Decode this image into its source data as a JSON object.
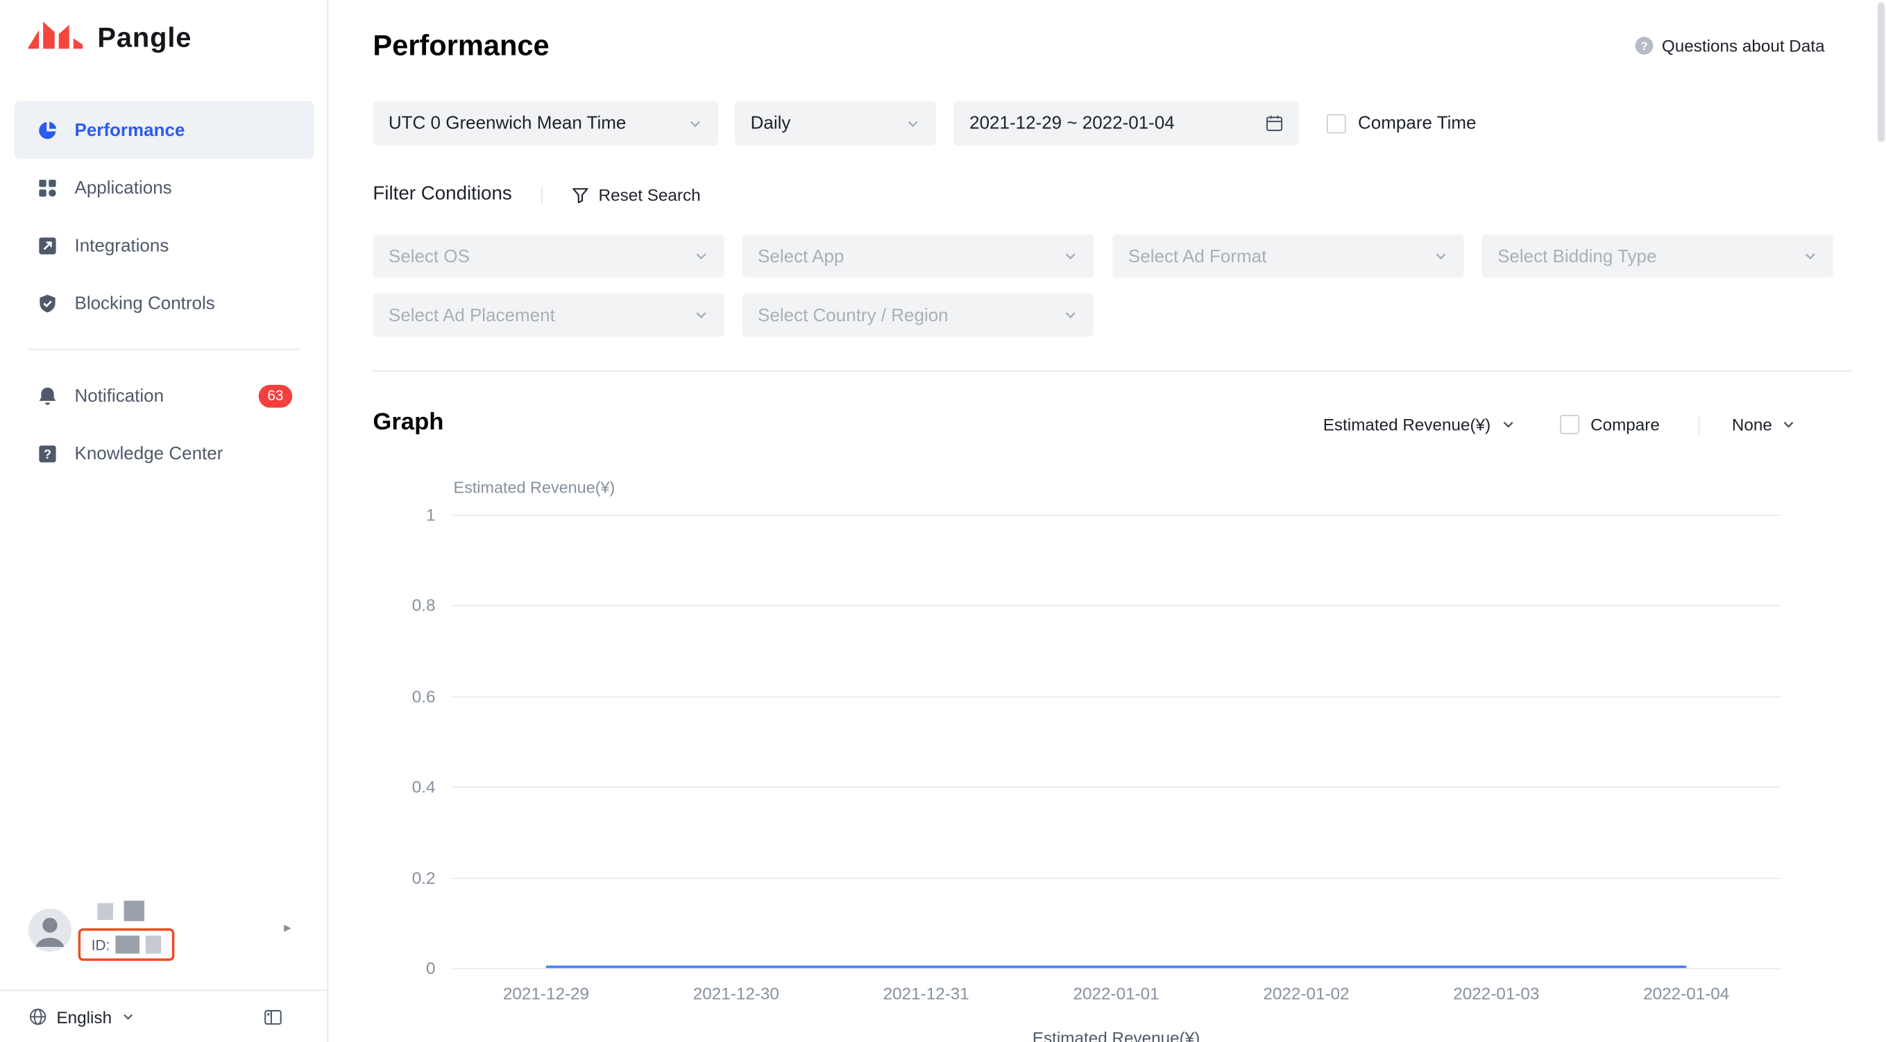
{
  "brand": {
    "logo_text": "Pangle",
    "logo_red": "#F5463D"
  },
  "sidebar": {
    "items": [
      {
        "label": "Performance",
        "active": true
      },
      {
        "label": "Applications",
        "active": false
      },
      {
        "label": "Integrations",
        "active": false
      },
      {
        "label": "Blocking Controls",
        "active": false
      },
      {
        "label": "Notification",
        "active": false,
        "badge": "63"
      },
      {
        "label": "Knowledge Center",
        "active": false
      }
    ],
    "user": {
      "id_label": "ID:"
    },
    "language": {
      "label": "English"
    }
  },
  "header": {
    "title": "Performance",
    "help_label": "Questions about Data"
  },
  "filters": {
    "timezone": "UTC 0 Greenwich Mean Time",
    "granularity": "Daily",
    "date_range": "2021-12-29 ~ 2022-01-04",
    "compare_time_label": "Compare Time",
    "section_label": "Filter Conditions",
    "reset_label": "Reset Search",
    "selects": [
      "Select OS",
      "Select App",
      "Select Ad Format",
      "Select Bidding Type",
      "Select Ad Placement",
      "Select Country / Region"
    ]
  },
  "graph": {
    "title": "Graph",
    "metric": "Estimated Revenue(¥)",
    "compare_label": "Compare",
    "secondary": "None"
  },
  "chart_data": {
    "type": "line",
    "title": "",
    "xlabel": "",
    "ylabel": "Estimated Revenue(¥)",
    "x": [
      "2021-12-29",
      "2021-12-30",
      "2021-12-31",
      "2022-01-01",
      "2022-01-02",
      "2022-01-03",
      "2022-01-04"
    ],
    "series": [
      {
        "name": "Estimated Revenue(¥)",
        "values": [
          0,
          0,
          0,
          0,
          0,
          0,
          0
        ]
      }
    ],
    "ylim": [
      0,
      1
    ],
    "yticks": [
      0,
      0.2,
      0.4,
      0.6,
      0.8,
      1
    ],
    "grid": true,
    "legend_position": "bottom",
    "line_color": "#4080FF"
  }
}
